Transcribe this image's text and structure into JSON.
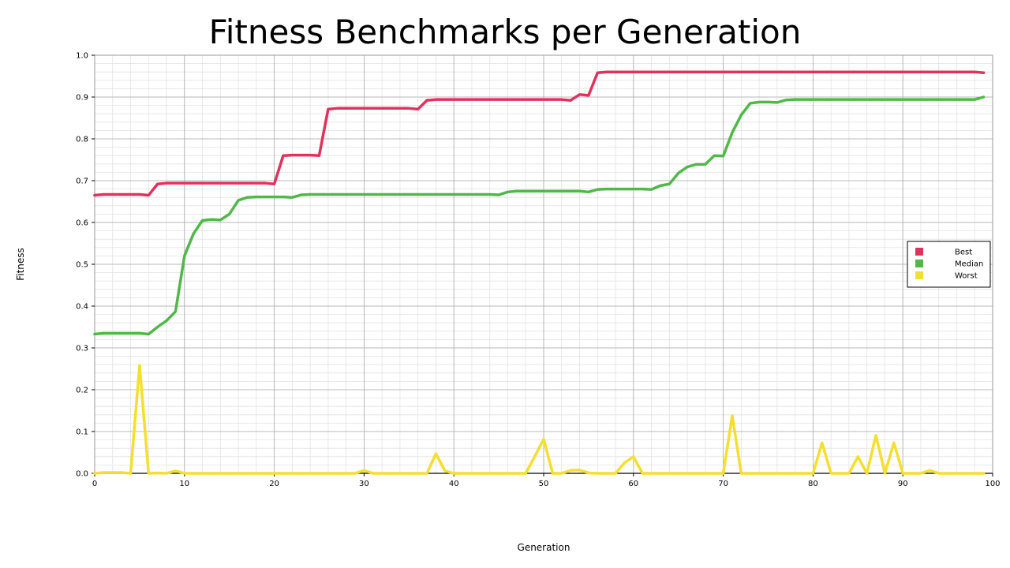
{
  "chart_data": {
    "type": "line",
    "title": "Fitness Benchmarks per Generation",
    "xlabel": "Generation",
    "ylabel": "Fitness",
    "xlim": [
      0,
      100
    ],
    "ylim": [
      0,
      1.0
    ],
    "xticks": [
      "0",
      "10",
      "20",
      "30",
      "40",
      "50",
      "60",
      "70",
      "80",
      "90",
      "100"
    ],
    "yticks": [
      "0.0",
      "0.1",
      "0.2",
      "0.3",
      "0.4",
      "0.5",
      "0.6",
      "0.7",
      "0.8",
      "0.9",
      "1.0"
    ],
    "grid": "major and minor",
    "legend_position": "right",
    "x": [
      0,
      1,
      2,
      3,
      4,
      5,
      6,
      7,
      8,
      9,
      10,
      11,
      12,
      13,
      14,
      15,
      16,
      17,
      18,
      19,
      20,
      21,
      22,
      23,
      24,
      25,
      26,
      27,
      28,
      29,
      30,
      31,
      32,
      33,
      34,
      35,
      36,
      37,
      38,
      39,
      40,
      41,
      42,
      43,
      44,
      45,
      46,
      47,
      48,
      49,
      50,
      51,
      52,
      53,
      54,
      55,
      56,
      57,
      58,
      59,
      60,
      61,
      62,
      63,
      64,
      65,
      66,
      67,
      68,
      69,
      70,
      71,
      72,
      73,
      74,
      75,
      76,
      77,
      78,
      79,
      80,
      81,
      82,
      83,
      84,
      85,
      86,
      87,
      88,
      89,
      90,
      91,
      92,
      93,
      94,
      95,
      96,
      97,
      98,
      99
    ],
    "series": [
      {
        "name": "Best",
        "color": "#e0325c",
        "values": [
          0.665,
          0.667,
          0.667,
          0.667,
          0.667,
          0.667,
          0.665,
          0.692,
          0.694,
          0.694,
          0.694,
          0.694,
          0.694,
          0.694,
          0.694,
          0.694,
          0.694,
          0.694,
          0.694,
          0.694,
          0.692,
          0.76,
          0.761,
          0.761,
          0.761,
          0.76,
          0.871,
          0.873,
          0.873,
          0.873,
          0.873,
          0.873,
          0.873,
          0.873,
          0.873,
          0.873,
          0.871,
          0.892,
          0.894,
          0.894,
          0.894,
          0.894,
          0.894,
          0.894,
          0.894,
          0.894,
          0.894,
          0.894,
          0.894,
          0.894,
          0.894,
          0.894,
          0.894,
          0.892,
          0.906,
          0.904,
          0.958,
          0.96,
          0.96,
          0.96,
          0.96,
          0.96,
          0.96,
          0.96,
          0.96,
          0.96,
          0.96,
          0.96,
          0.96,
          0.96,
          0.96,
          0.96,
          0.96,
          0.96,
          0.96,
          0.96,
          0.96,
          0.96,
          0.96,
          0.96,
          0.96,
          0.96,
          0.96,
          0.96,
          0.96,
          0.96,
          0.96,
          0.96,
          0.96,
          0.96,
          0.96,
          0.96,
          0.96,
          0.96,
          0.96,
          0.96,
          0.96,
          0.96,
          0.96,
          0.958
        ]
      },
      {
        "name": "Median",
        "color": "#50b848",
        "values": [
          0.333,
          0.335,
          0.335,
          0.335,
          0.335,
          0.335,
          0.333,
          0.35,
          0.365,
          0.387,
          0.52,
          0.573,
          0.605,
          0.607,
          0.606,
          0.62,
          0.653,
          0.66,
          0.661,
          0.661,
          0.661,
          0.661,
          0.66,
          0.666,
          0.667,
          0.667,
          0.667,
          0.667,
          0.667,
          0.667,
          0.667,
          0.667,
          0.667,
          0.667,
          0.667,
          0.667,
          0.667,
          0.667,
          0.667,
          0.667,
          0.667,
          0.667,
          0.667,
          0.667,
          0.667,
          0.666,
          0.673,
          0.675,
          0.675,
          0.675,
          0.675,
          0.675,
          0.675,
          0.675,
          0.675,
          0.673,
          0.679,
          0.68,
          0.68,
          0.68,
          0.68,
          0.68,
          0.679,
          0.688,
          0.692,
          0.718,
          0.733,
          0.739,
          0.739,
          0.76,
          0.759,
          0.815,
          0.857,
          0.885,
          0.888,
          0.888,
          0.887,
          0.893,
          0.894,
          0.894,
          0.894,
          0.894,
          0.894,
          0.894,
          0.894,
          0.894,
          0.894,
          0.894,
          0.894,
          0.894,
          0.894,
          0.894,
          0.894,
          0.894,
          0.894,
          0.894,
          0.894,
          0.894,
          0.894,
          0.9
        ]
      },
      {
        "name": "Worst",
        "color": "#f5df2e",
        "values": [
          0.0,
          0.002,
          0.002,
          0.002,
          0.0,
          0.258,
          0.0,
          0.001,
          0.0,
          0.006,
          0.0,
          0.0,
          0.0,
          0.0,
          0.0,
          0.0,
          0.0,
          0.0,
          0.0,
          0.0,
          0.0,
          0.0,
          0.0,
          0.0,
          0.0,
          0.0,
          0.0,
          0.0,
          0.0,
          0.0,
          0.007,
          0.0,
          0.0,
          0.0,
          0.0,
          0.0,
          0.0,
          0.0,
          0.047,
          0.006,
          0.0,
          0.0,
          0.0,
          0.0,
          0.0,
          0.0,
          0.0,
          0.0,
          0.0,
          0.04,
          0.082,
          0.0,
          0.0,
          0.007,
          0.008,
          0.001,
          0.0,
          0.0,
          0.0,
          0.025,
          0.04,
          0.0,
          0.0,
          0.0,
          0.0,
          0.0,
          0.0,
          0.0,
          0.0,
          0.0,
          0.0,
          0.138,
          0.0,
          0.0,
          0.0,
          0.0,
          0.0,
          0.0,
          0.0,
          0.0,
          0.0,
          0.073,
          0.0,
          0.0,
          0.0,
          0.04,
          0.0,
          0.091,
          0.0,
          0.073,
          0.0,
          0.0,
          0.0,
          0.007,
          0.0,
          0.0,
          0.0,
          0.0,
          0.0,
          0.0
        ]
      }
    ]
  }
}
